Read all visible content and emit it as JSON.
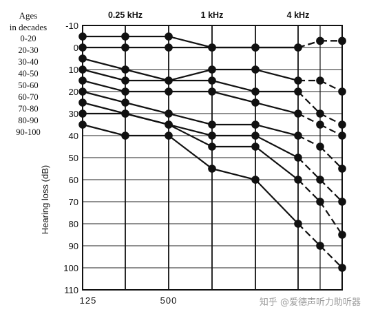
{
  "chart_data": {
    "type": "line",
    "title": "",
    "top_labels": [
      "0.25 kHz",
      "1 kHz",
      "4 kHz"
    ],
    "x_tick_labels": [
      "125",
      "500"
    ],
    "ylabel": "Hearing loss (dB)",
    "y_ticks": [
      -10,
      0,
      10,
      20,
      30,
      40,
      50,
      60,
      70,
      80,
      90,
      100,
      110
    ],
    "ylim": [
      -10,
      110
    ],
    "y_inverted": true,
    "frequencies_hz": [
      125,
      250,
      500,
      1000,
      2000,
      4000,
      6000,
      8000
    ],
    "legend_title": [
      "Ages",
      "in decades"
    ],
    "legend_entries": [
      "0-20",
      "20-30",
      "30-40",
      "40-50",
      "50-60",
      "60-70",
      "70-80",
      "80-90",
      "90-100"
    ],
    "series": [
      {
        "name": "0-20",
        "x": [
          125,
          250,
          500,
          1000,
          2000,
          4000,
          6000,
          8000
        ],
        "y": [
          0,
          0,
          0,
          0,
          0,
          0,
          -3,
          -3
        ]
      },
      {
        "name": "20-30",
        "x": [
          125,
          250,
          500,
          1000,
          2000,
          4000,
          6000,
          8000
        ],
        "y": [
          -5,
          -5,
          -5,
          0,
          0,
          0,
          -3,
          -3
        ]
      },
      {
        "name": "30-40",
        "x": [
          125,
          250,
          500,
          1000,
          2000,
          4000,
          6000,
          8000
        ],
        "y": [
          5,
          10,
          15,
          15,
          20,
          20,
          30,
          35
        ]
      },
      {
        "name": "40-50",
        "x": [
          125,
          250,
          500,
          1000,
          2000,
          4000,
          6000,
          8000
        ],
        "y": [
          10,
          15,
          15,
          10,
          10,
          15,
          15,
          20
        ]
      },
      {
        "name": "50-60",
        "x": [
          125,
          250,
          500,
          1000,
          2000,
          4000,
          6000,
          8000
        ],
        "y": [
          15,
          20,
          20,
          20,
          25,
          30,
          35,
          40
        ]
      },
      {
        "name": "60-70",
        "x": [
          125,
          250,
          500,
          1000,
          2000,
          4000,
          6000,
          8000
        ],
        "y": [
          20,
          25,
          30,
          35,
          35,
          40,
          45,
          55
        ]
      },
      {
        "name": "70-80",
        "x": [
          125,
          250,
          500,
          1000,
          2000,
          4000,
          6000,
          8000
        ],
        "y": [
          25,
          30,
          35,
          40,
          40,
          50,
          60,
          70
        ]
      },
      {
        "name": "80-90",
        "x": [
          125,
          250,
          500,
          1000,
          2000,
          4000,
          6000,
          8000
        ],
        "y": [
          30,
          30,
          35,
          45,
          45,
          60,
          70,
          85
        ]
      },
      {
        "name": "90-100",
        "x": [
          125,
          250,
          500,
          1000,
          2000,
          4000,
          6000,
          8000
        ],
        "y": [
          35,
          40,
          40,
          55,
          60,
          80,
          90,
          100
        ]
      }
    ],
    "grid": true,
    "legend_position": "left"
  },
  "watermark_text": "知乎 @爱德声听力助听器"
}
